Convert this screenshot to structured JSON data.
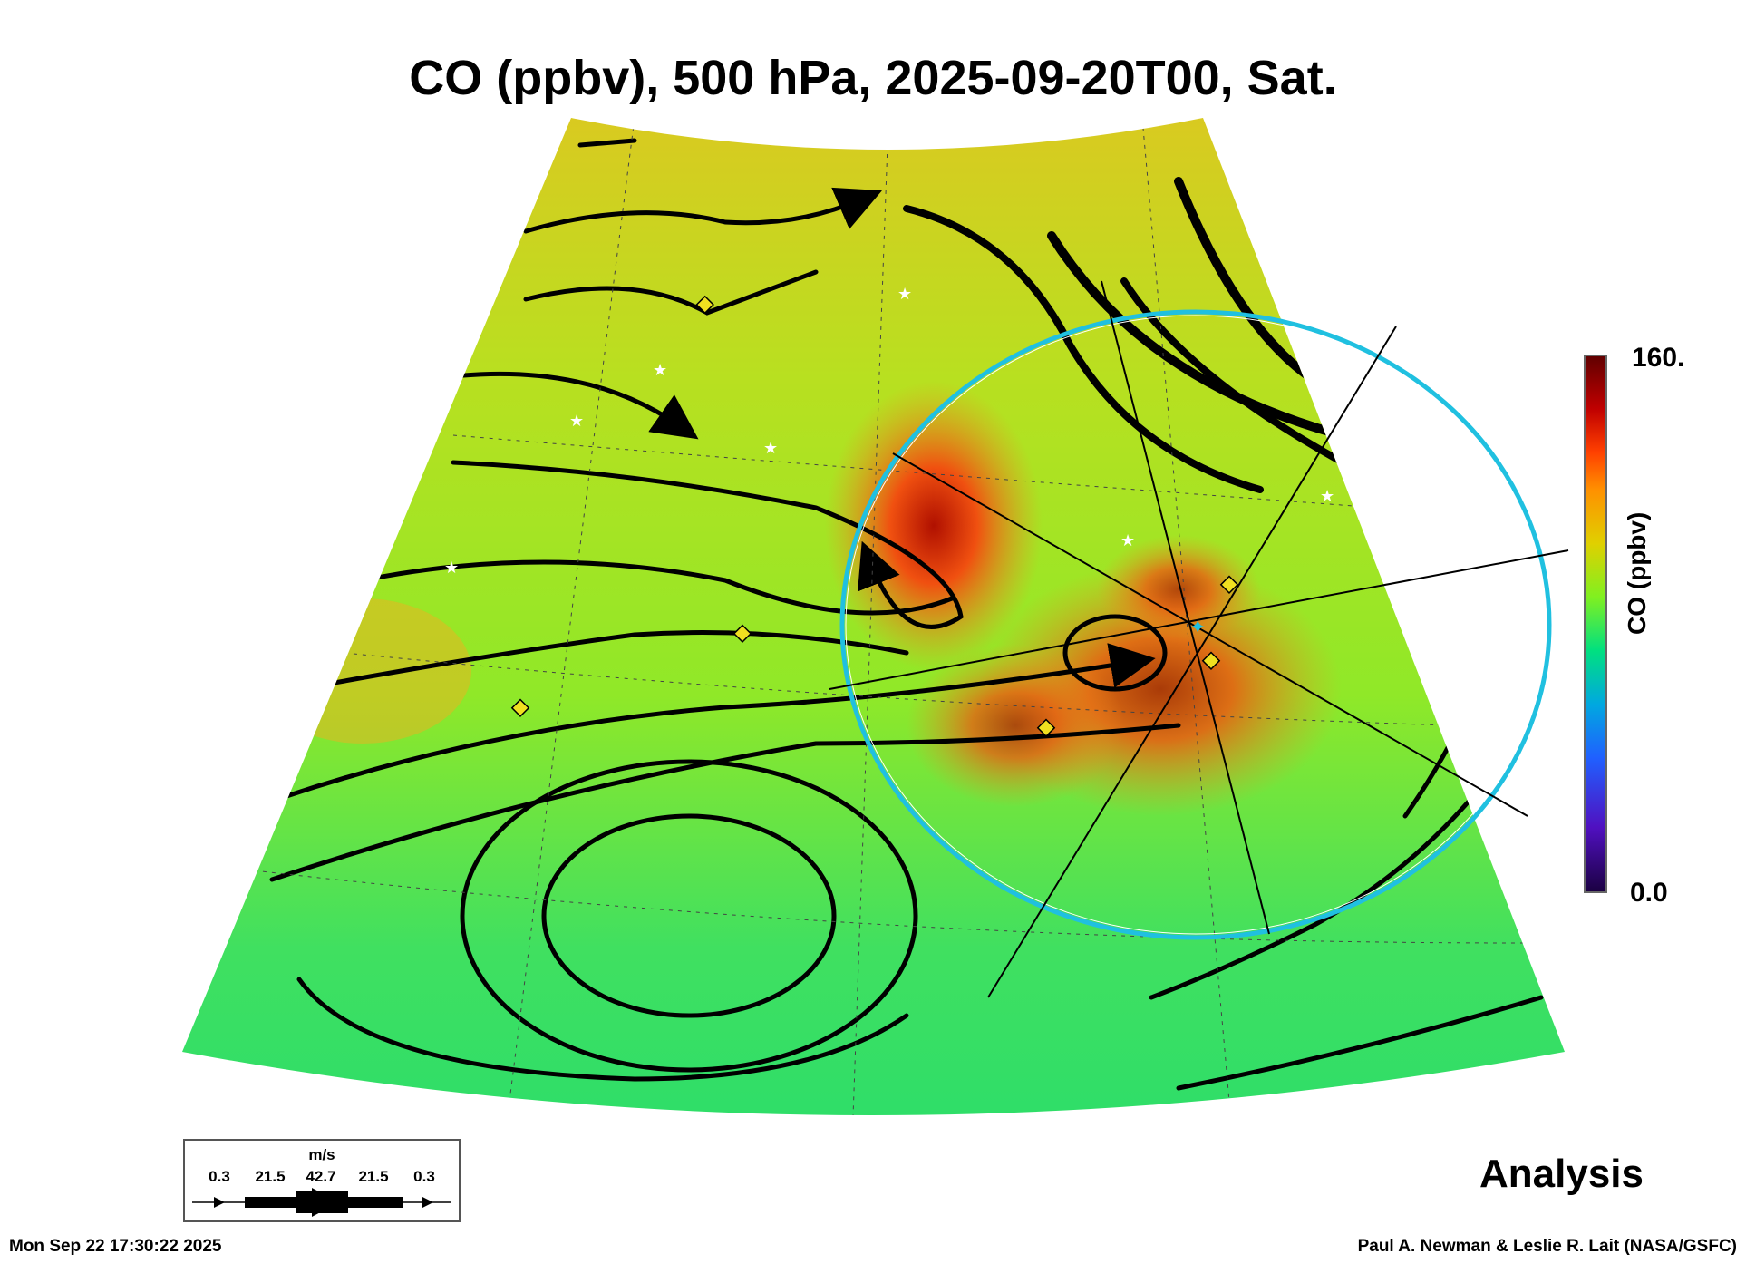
{
  "title": "CO (ppbv), 500 hPa, 2025-09-20T00, Sat.",
  "colorbar": {
    "label": "CO (ppbv)",
    "max_label": "160.",
    "min_label": "0.0",
    "colors": [
      "#1a0040",
      "#5010c0",
      "#2060ff",
      "#00a8e0",
      "#00e080",
      "#80f020",
      "#e0d000",
      "#ff9000",
      "#ff4000",
      "#c00000",
      "#600000"
    ]
  },
  "wind_legend": {
    "unit": "m/s",
    "values": [
      "0.3",
      "21.5",
      "42.7",
      "21.5",
      "0.3"
    ]
  },
  "product_label": "Analysis",
  "footer": {
    "timestamp": "Mon Sep 22 17:30:22 2025",
    "credit": "Paul A. Newman & Leslie R. Lait (NASA/GSFC)"
  }
}
